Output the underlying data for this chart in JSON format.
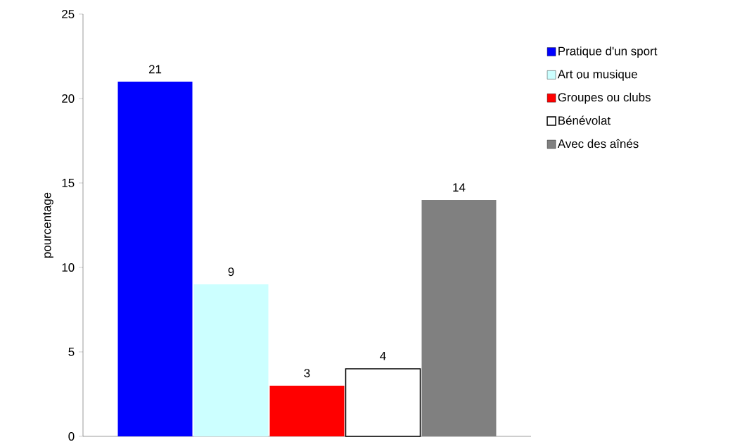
{
  "chart_data": {
    "type": "bar",
    "ylabel": "pourcentage",
    "categories": [
      null
    ],
    "series": [
      {
        "name": "Pratique d'un sport",
        "color": "#0000ff",
        "values": [
          21
        ]
      },
      {
        "name": "Art ou musique",
        "color": "#ccffff",
        "values": [
          9
        ]
      },
      {
        "name": "Groupes ou clubs",
        "color": "#ff0000",
        "values": [
          3
        ]
      },
      {
        "name": "Bénévolat",
        "color": "#ffffff",
        "values": [
          4
        ]
      },
      {
        "name": "Avec des aînés",
        "color": "#808080",
        "values": [
          14
        ]
      }
    ],
    "ylim": [
      0,
      25
    ],
    "yticks": [
      0,
      5,
      10,
      15,
      20,
      25
    ],
    "data_labels": true,
    "legend": "right",
    "grid": false
  }
}
